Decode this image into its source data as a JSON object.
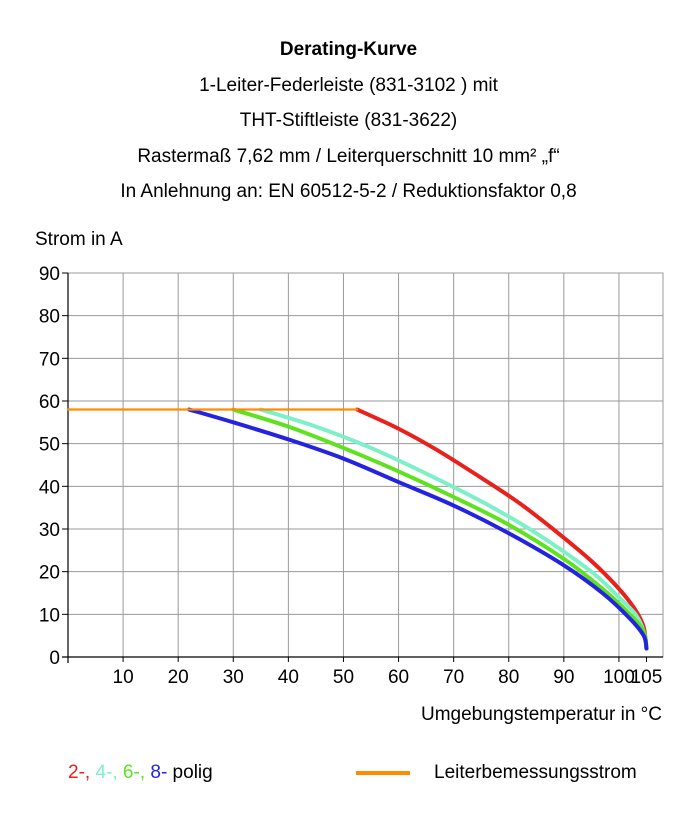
{
  "titles": [
    "Derating-Kurve",
    "1-Leiter-Federleiste (831-3102 ) mit",
    "THT-Stiftleiste (831-3622)",
    "Rastermaß 7,62 mm / Leiterquerschnitt 10 mm² „f“",
    "In Anlehnung an: EN 60512-5-2 / Reduktionsfaktor 0,8"
  ],
  "legend": {
    "pole_items": [
      {
        "text": "2-,",
        "color": "#e8211c"
      },
      {
        "text": " 4-,",
        "color": "#7df0c8"
      },
      {
        "text": " 6-,",
        "color": "#5ee21f"
      },
      {
        "text": " 8-",
        "color": "#2424e0"
      }
    ],
    "pole_suffix": " polig",
    "rated_current_label": "Leiterbemessungsstrom",
    "rated_current_color": "#ff8c00"
  },
  "chart_data": {
    "type": "line",
    "ylabel": "Strom in A",
    "xlabel": "Umgebungstemperatur in °C",
    "xlim": [
      0,
      108
    ],
    "ylim": [
      0,
      90
    ],
    "x_ticks": [
      10,
      20,
      30,
      40,
      50,
      60,
      70,
      80,
      90,
      100,
      105
    ],
    "y_ticks": [
      0,
      10,
      20,
      30,
      40,
      50,
      60,
      70,
      80,
      90
    ],
    "grid": true,
    "legend_position": "bottom",
    "series": [
      {
        "name": "Leiterbemessungsstrom",
        "color": "#ff8c00",
        "points": [
          [
            0,
            58
          ],
          [
            52.5,
            58
          ]
        ]
      },
      {
        "name": "2-",
        "color": "#e8211c",
        "points": [
          [
            52.5,
            58
          ],
          [
            60,
            53.5
          ],
          [
            67,
            48.5
          ],
          [
            75,
            42
          ],
          [
            82,
            36
          ],
          [
            89,
            29
          ],
          [
            95,
            22.5
          ],
          [
            100,
            16
          ],
          [
            103,
            11
          ],
          [
            104.5,
            7
          ],
          [
            105,
            2
          ]
        ]
      },
      {
        "name": "4-",
        "color": "#7df0c8",
        "points": [
          [
            35,
            58
          ],
          [
            45,
            54
          ],
          [
            55,
            49
          ],
          [
            65,
            43
          ],
          [
            75,
            36.5
          ],
          [
            85,
            29
          ],
          [
            95,
            20
          ],
          [
            100,
            14
          ],
          [
            103,
            10
          ],
          [
            104.5,
            6
          ],
          [
            105,
            2
          ]
        ]
      },
      {
        "name": "6-",
        "color": "#5ee21f",
        "points": [
          [
            30,
            58
          ],
          [
            40,
            54
          ],
          [
            50,
            49
          ],
          [
            60,
            43.5
          ],
          [
            70,
            37.5
          ],
          [
            80,
            31
          ],
          [
            90,
            23
          ],
          [
            97,
            16
          ],
          [
            102,
            10
          ],
          [
            104.5,
            6
          ],
          [
            105,
            2
          ]
        ]
      },
      {
        "name": "8-",
        "color": "#2424e0",
        "points": [
          [
            22,
            58
          ],
          [
            30,
            55
          ],
          [
            40,
            51
          ],
          [
            50,
            46.5
          ],
          [
            60,
            41
          ],
          [
            70,
            35.5
          ],
          [
            80,
            29
          ],
          [
            90,
            21.5
          ],
          [
            97,
            15
          ],
          [
            102,
            9
          ],
          [
            104.5,
            5
          ],
          [
            105,
            2
          ]
        ]
      }
    ]
  }
}
